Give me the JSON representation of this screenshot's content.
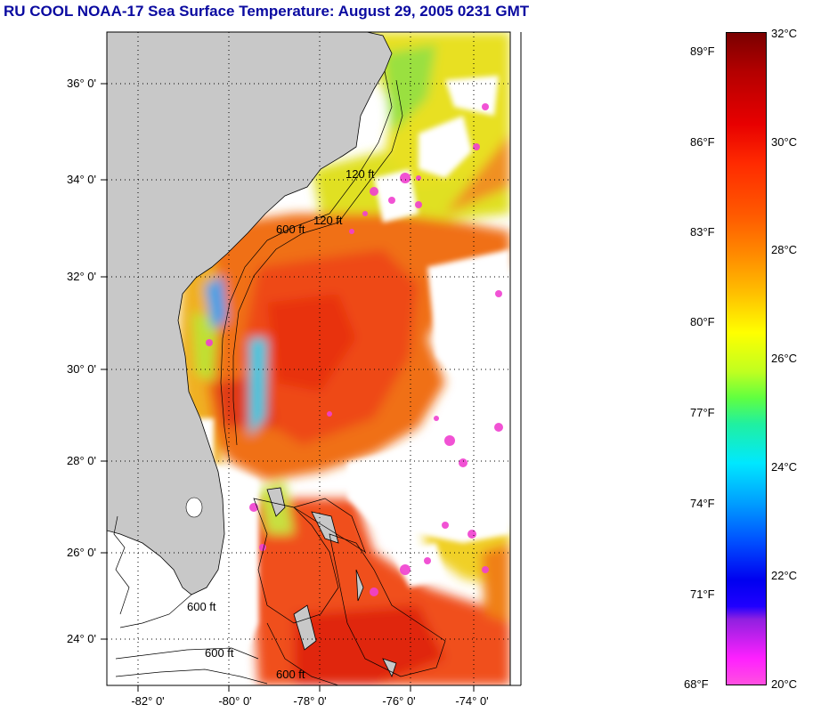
{
  "title": "RU COOL  NOAA-17  Sea Surface Temperature:  August 29, 2005 0231 GMT",
  "map": {
    "lat_labels": [
      "36° 0'",
      "34° 0'",
      "32° 0'",
      "30° 0'",
      "28° 0'",
      "26° 0'",
      "24° 0'"
    ],
    "lon_labels": [
      "-82° 0'",
      "-80° 0'",
      "-78° 0'",
      "-76° 0'",
      "-74° 0'"
    ],
    "contour_labels": [
      "600 ft",
      "120 ft",
      "600 ft",
      "120 ft",
      "600 ft",
      "600 ft"
    ],
    "colors": {
      "land": "#c8c8c8",
      "cloud": "#ffffff",
      "warm_core": "#ee3c10",
      "warm_mid": "#f06a14",
      "shelf_cool": "#30c8e0",
      "nearshore": "#e8e020"
    }
  },
  "colorbar": {
    "fahrenheit_labels": [
      "89°F",
      "86°F",
      "83°F",
      "80°F",
      "77°F",
      "74°F",
      "71°F",
      "68°F"
    ],
    "celsius_labels": [
      "32°C",
      "30°C",
      "28°C",
      "26°C",
      "24°C",
      "22°C",
      "20°C"
    ],
    "range_c": [
      20,
      32
    ],
    "range_f": [
      68,
      89.6
    ]
  }
}
